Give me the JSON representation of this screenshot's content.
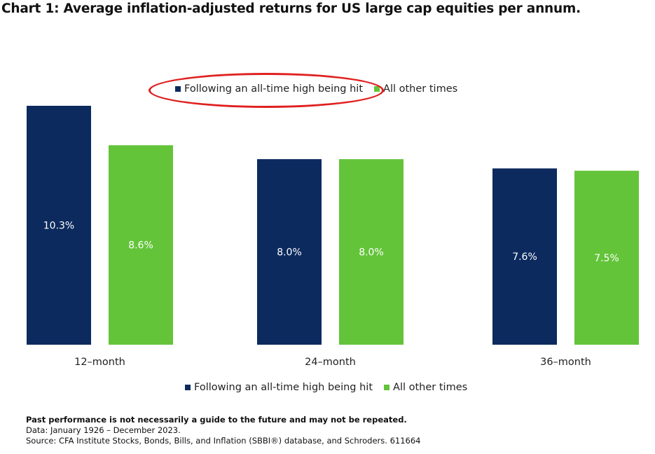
{
  "chart_data": {
    "type": "bar",
    "title": "Chart 1: Average inflation-adjusted returns for US large cap equities per annum.",
    "categories": [
      "12–month",
      "24–month",
      "36–month"
    ],
    "series": [
      {
        "name": "Following an all-time high being hit",
        "color": "#0c2a5e",
        "values": [
          10.3,
          8.0,
          7.6
        ],
        "labels": [
          "10.3%",
          "8.0%",
          "7.6%"
        ]
      },
      {
        "name": "All other times",
        "color": "#63c43a",
        "values": [
          8.6,
          8.0,
          7.5
        ],
        "labels": [
          "8.6%",
          "8.0%",
          "7.5%"
        ]
      }
    ],
    "xlabel": "",
    "ylabel": "",
    "ylim": [
      0,
      10.3
    ],
    "grid": false,
    "legend_position": "top-center and bottom-center",
    "annotation": "red ellipse highlighting top legend entry 'Following an all-time high being hit'"
  },
  "legend": {
    "top": {
      "series_a": "Following an all-time high being hit",
      "series_b": "All other times"
    },
    "bottom": {
      "series_a": "Following an all-time high being hit",
      "series_b": "All other times"
    }
  },
  "footnotes": {
    "disclaimer": "Past performance is not necessarily a guide to the future and may not be repeated.",
    "data_range": "Data: January 1926 – December 2023.",
    "source": "Source: CFA Institute Stocks, Bonds, Bills, and Inflation (SBBI®) database, and Schroders. 611664"
  },
  "colors": {
    "navy": "#0c2a5e",
    "green": "#63c43a",
    "highlight": "#e02020"
  }
}
